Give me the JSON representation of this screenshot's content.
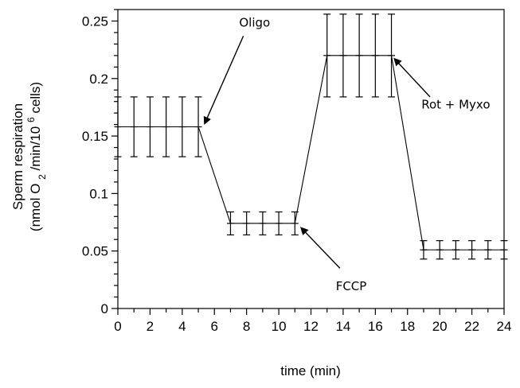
{
  "chart_data": {
    "type": "line",
    "title": "",
    "xlabel": "time (min)",
    "ylabel_line1": "Sperm respiration",
    "ylabel_line2_prefix": "(nmol O",
    "ylabel_line2_sub": "2",
    "ylabel_line2_mid": "/min/10",
    "ylabel_line2_sup": "6",
    "ylabel_line2_suffix": " cells)",
    "xlim": [
      0,
      24
    ],
    "ylim": [
      0,
      0.26
    ],
    "x_ticks": [
      0,
      2,
      4,
      6,
      8,
      10,
      12,
      14,
      16,
      18,
      20,
      22,
      24
    ],
    "x_tick_labels": [
      "0",
      "2",
      "4",
      "6",
      "8",
      "10",
      "12",
      "14",
      "16",
      "18",
      "20",
      "22",
      "24"
    ],
    "y_ticks": [
      0,
      0.05,
      0.1,
      0.15,
      0.2,
      0.25
    ],
    "y_tick_labels": [
      "0",
      "0.05",
      "0.1",
      "0.15",
      "0.2",
      "0.25"
    ],
    "grid": false,
    "series": [
      {
        "x": [
          0,
          1,
          2,
          3,
          4,
          5,
          7,
          8,
          9,
          10,
          11,
          13,
          14,
          15,
          16,
          17,
          19,
          20,
          21,
          22,
          23,
          24
        ],
        "values": [
          0.158,
          0.158,
          0.158,
          0.158,
          0.158,
          0.158,
          0.074,
          0.074,
          0.074,
          0.074,
          0.074,
          0.22,
          0.22,
          0.22,
          0.22,
          0.22,
          0.051,
          0.051,
          0.051,
          0.051,
          0.051,
          0.051
        ],
        "errors": [
          0.026,
          0.026,
          0.026,
          0.026,
          0.026,
          0.026,
          0.01,
          0.01,
          0.01,
          0.01,
          0.01,
          0.036,
          0.036,
          0.036,
          0.036,
          0.036,
          0.008,
          0.008,
          0.008,
          0.008,
          0.008,
          0.008
        ]
      }
    ],
    "annotations": [
      {
        "text": "Oligo",
        "label_x": 8.5,
        "label_y": 0.245,
        "arrow_from_x": 7.8,
        "arrow_from_y": 0.237,
        "arrow_to_x": 5.4,
        "arrow_to_y": 0.161
      },
      {
        "text": "FCCP",
        "label_x": 14.5,
        "label_y": 0.016,
        "arrow_from_x": 13.8,
        "arrow_from_y": 0.035,
        "arrow_to_x": 11.4,
        "arrow_to_y": 0.07
      },
      {
        "text": "Rot + Myxo",
        "label_x": 21.0,
        "label_y": 0.174,
        "arrow_from_x": 19.4,
        "arrow_from_y": 0.184,
        "arrow_to_x": 17.2,
        "arrow_to_y": 0.217
      }
    ]
  }
}
